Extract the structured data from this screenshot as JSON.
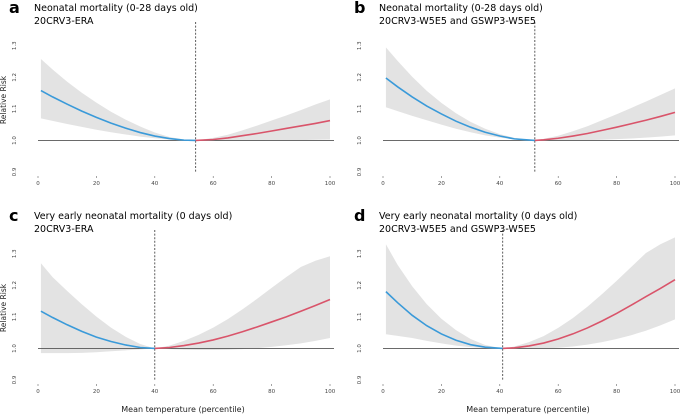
{
  "chart_data": [
    {
      "panel": "a",
      "type": "line",
      "title": "Neonatal mortality (0-28 days old)",
      "subtitle": "20CRV3-ERA",
      "ylabel": "Relative Risk",
      "xlabel": "",
      "xlim": [
        0,
        100
      ],
      "ylim": [
        0.9,
        1.35
      ],
      "xticks": [
        "0",
        "20",
        "40",
        "60",
        "80",
        "100"
      ],
      "yticks": [
        "0.9",
        "1.0",
        "1.1",
        "1.2",
        "1.3"
      ],
      "threshold": 54,
      "x": [
        1,
        5,
        10,
        15,
        20,
        25,
        30,
        35,
        40,
        45,
        50,
        54,
        60,
        65,
        70,
        75,
        80,
        85,
        90,
        95,
        100
      ],
      "y": [
        1.158,
        1.138,
        1.115,
        1.093,
        1.073,
        1.055,
        1.039,
        1.025,
        1.014,
        1.006,
        1.001,
        1.0,
        1.003,
        1.008,
        1.015,
        1.022,
        1.03,
        1.038,
        1.046,
        1.054,
        1.063
      ],
      "lower": [
        1.07,
        1.062,
        1.052,
        1.043,
        1.034,
        1.026,
        1.019,
        1.012,
        1.007,
        1.003,
        1.0,
        1.0,
        0.999,
        0.999,
        0.999,
        0.999,
        1.0,
        1.001,
        1.001,
        1.002,
        1.003
      ],
      "upper": [
        1.258,
        1.225,
        1.186,
        1.151,
        1.12,
        1.091,
        1.066,
        1.044,
        1.025,
        1.011,
        1.003,
        1.0,
        1.008,
        1.018,
        1.032,
        1.047,
        1.063,
        1.079,
        1.096,
        1.114,
        1.13
      ]
    },
    {
      "panel": "b",
      "type": "line",
      "title": "Neonatal mortality (0-28 days old)",
      "subtitle": "20CRV3-W5E5 and GSWP3-W5E5",
      "ylabel": "",
      "xlabel": "",
      "xlim": [
        0,
        100
      ],
      "ylim": [
        0.9,
        1.35
      ],
      "xticks": [
        "0",
        "20",
        "40",
        "60",
        "80",
        "100"
      ],
      "yticks": [
        "0.9",
        "1.0",
        "1.1",
        "1.2",
        "1.3"
      ],
      "threshold": 52,
      "x": [
        1,
        5,
        10,
        15,
        20,
        25,
        30,
        35,
        40,
        45,
        52,
        55,
        60,
        65,
        70,
        75,
        80,
        85,
        90,
        95,
        100
      ],
      "y": [
        1.198,
        1.17,
        1.138,
        1.109,
        1.084,
        1.061,
        1.042,
        1.026,
        1.014,
        1.005,
        1.0,
        1.002,
        1.007,
        1.014,
        1.022,
        1.032,
        1.042,
        1.053,
        1.064,
        1.076,
        1.089
      ],
      "lower": [
        1.105,
        1.093,
        1.078,
        1.064,
        1.05,
        1.037,
        1.026,
        1.016,
        1.009,
        1.003,
        1.0,
        1.0,
        1.0,
        1.0,
        1.001,
        1.002,
        1.004,
        1.006,
        1.009,
        1.012,
        1.016
      ],
      "upper": [
        1.295,
        1.252,
        1.202,
        1.157,
        1.119,
        1.086,
        1.059,
        1.037,
        1.02,
        1.008,
        1.0,
        1.005,
        1.015,
        1.029,
        1.045,
        1.064,
        1.083,
        1.103,
        1.123,
        1.144,
        1.165
      ]
    },
    {
      "panel": "c",
      "type": "line",
      "title": "Very early neonatal mortality (0 days old)",
      "subtitle": "20CRV3-ERA",
      "ylabel": "Relative Risk",
      "xlabel": "Mean temperature (percentile)",
      "xlim": [
        0,
        100
      ],
      "ylim": [
        0.9,
        1.35
      ],
      "xticks": [
        "0",
        "20",
        "40",
        "60",
        "80",
        "100"
      ],
      "yticks": [
        "0.9",
        "1.0",
        "1.1",
        "1.2",
        "1.3"
      ],
      "threshold": 40,
      "x": [
        1,
        5,
        10,
        15,
        20,
        25,
        30,
        35,
        40,
        45,
        50,
        55,
        60,
        65,
        70,
        75,
        80,
        85,
        90,
        95,
        100
      ],
      "y": [
        1.118,
        1.098,
        1.075,
        1.054,
        1.036,
        1.022,
        1.011,
        1.003,
        1.0,
        1.003,
        1.009,
        1.017,
        1.027,
        1.039,
        1.053,
        1.068,
        1.084,
        1.1,
        1.118,
        1.136,
        1.155
      ],
      "lower": [
        0.985,
        0.985,
        0.985,
        0.986,
        0.988,
        0.991,
        0.994,
        0.997,
        1.0,
        0.998,
        0.996,
        0.995,
        0.995,
        0.996,
        0.998,
        1.001,
        1.005,
        1.01,
        1.016,
        1.024,
        1.033
      ],
      "upper": [
        1.27,
        1.226,
        1.182,
        1.14,
        1.101,
        1.066,
        1.037,
        1.014,
        1.0,
        1.009,
        1.024,
        1.043,
        1.066,
        1.093,
        1.124,
        1.157,
        1.192,
        1.226,
        1.258,
        1.278,
        1.292
      ]
    },
    {
      "panel": "d",
      "type": "line",
      "title": "Very early neonatal mortality (0 days old)",
      "subtitle": "20CRV3-W5E5 and GSWP3-W5E5",
      "ylabel": "",
      "xlabel": "Mean temperature (percentile)",
      "xlim": [
        0,
        100
      ],
      "ylim": [
        0.9,
        1.35
      ],
      "xticks": [
        "0",
        "20",
        "40",
        "60",
        "80",
        "100"
      ],
      "yticks": [
        "0.9",
        "1.0",
        "1.1",
        "1.2",
        "1.3"
      ],
      "threshold": 41,
      "x": [
        1,
        5,
        10,
        15,
        20,
        25,
        30,
        35,
        41,
        45,
        50,
        55,
        60,
        65,
        70,
        75,
        80,
        85,
        90,
        95,
        100
      ],
      "y": [
        1.18,
        1.145,
        1.105,
        1.072,
        1.046,
        1.026,
        1.012,
        1.004,
        1.0,
        1.002,
        1.008,
        1.017,
        1.03,
        1.046,
        1.065,
        1.087,
        1.111,
        1.137,
        1.164,
        1.19,
        1.218
      ],
      "lower": [
        1.045,
        1.04,
        1.033,
        1.024,
        1.016,
        1.009,
        1.004,
        1.001,
        1.0,
        0.999,
        0.999,
        1.0,
        1.002,
        1.006,
        1.012,
        1.02,
        1.03,
        1.042,
        1.056,
        1.073,
        1.092
      ],
      "upper": [
        1.33,
        1.265,
        1.197,
        1.14,
        1.094,
        1.058,
        1.03,
        1.011,
        1.0,
        1.006,
        1.02,
        1.039,
        1.065,
        1.096,
        1.132,
        1.172,
        1.214,
        1.258,
        1.302,
        1.33,
        1.352
      ]
    }
  ],
  "colors": {
    "cold": "#3a9ad9",
    "heat": "#d9546a",
    "band": "#e3e3e3",
    "reference": "#555555"
  }
}
